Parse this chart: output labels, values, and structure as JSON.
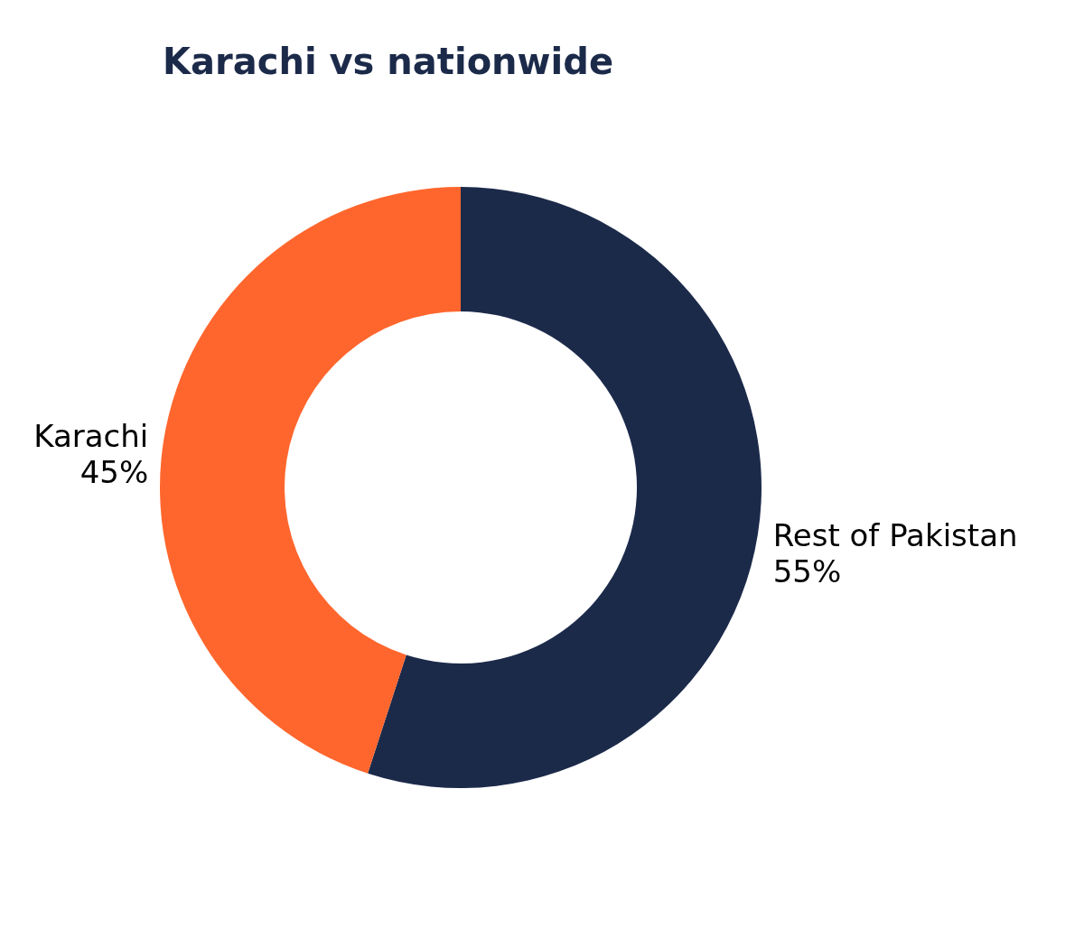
{
  "chart_data": {
    "type": "donut",
    "title": "Karachi vs nationwide",
    "categories": [
      "Rest of Pakistan",
      "Karachi"
    ],
    "values": [
      55,
      45
    ],
    "colors": [
      "#1c2a4a",
      "#ff662d"
    ],
    "value_labels": [
      "55%",
      "45%"
    ]
  }
}
